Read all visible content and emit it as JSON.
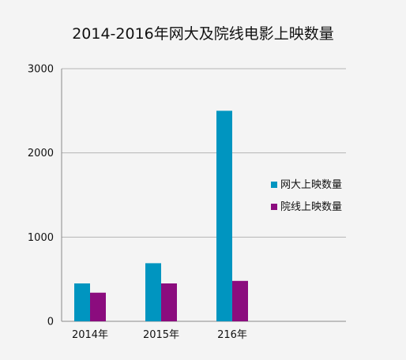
{
  "chart_data": {
    "type": "bar",
    "title": "2014-2016年网大及院线电影上映数量",
    "categories": [
      "2014年",
      "2015年",
      "216年"
    ],
    "series": [
      {
        "name": "网大上映数量",
        "values": [
          450,
          690,
          2500
        ],
        "color": "#0095c0"
      },
      {
        "name": "院线上映数量",
        "values": [
          340,
          450,
          480
        ],
        "color": "#8b0c7e"
      }
    ],
    "xlabel": "",
    "ylabel": "",
    "ylim": [
      0,
      3000
    ],
    "yticks": [
      0,
      1000,
      2000,
      3000
    ],
    "grid": true,
    "legend_position": "right"
  }
}
